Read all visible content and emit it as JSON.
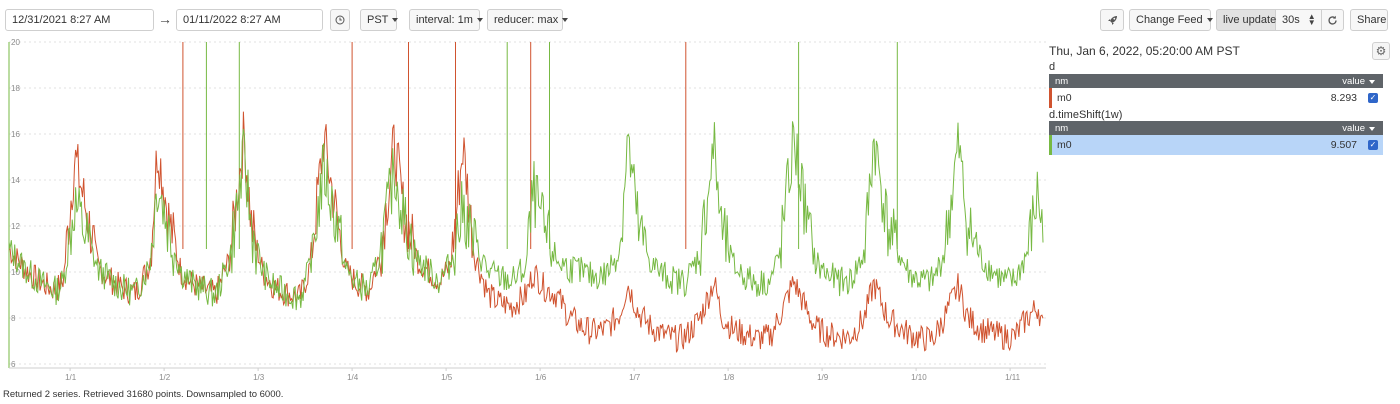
{
  "toolbar": {
    "start_time": "12/31/2021 8:27 AM",
    "end_time": "01/11/2022 8:27 AM",
    "timezone": "PST",
    "interval": "interval: 1m",
    "reducer": "reducer: max",
    "change_feed": "Change Feed",
    "live_update": "live update",
    "refresh_rate": "30s",
    "share": "Share",
    "arrow_icon": "arrow-right-icon",
    "clock_icon": "clock-icon",
    "rocket_icon": "rocket-icon",
    "refresh_icon": "refresh-icon",
    "stepper_icon": "up-down-stepper-icon"
  },
  "legend": {
    "timestamp": "Thu, Jan 6, 2022, 05:20:00 AM PST",
    "gear_icon": "gear-icon",
    "series": [
      {
        "name": "d",
        "col_name": "nm",
        "col_value": "value",
        "row_name": "m0",
        "row_value": "8.293",
        "color": "#d0532f"
      },
      {
        "name": "d.timeShift(1w)",
        "col_name": "nm",
        "col_value": "value",
        "row_name": "m0",
        "row_value": "9.507",
        "color": "#77b943"
      }
    ]
  },
  "status": "Returned 2 series. Retrieved 31680 points. Downsampled to 6000.",
  "chart_data": {
    "type": "line",
    "ylim": [
      6,
      20
    ],
    "yticks": [
      "6",
      "8",
      "10",
      "12",
      "14",
      "16",
      "18",
      "20"
    ],
    "xticks": [
      "1/1",
      "1/2",
      "1/3",
      "1/4",
      "1/5",
      "1/6",
      "1/7",
      "1/8",
      "1/9",
      "1/10",
      "1/11"
    ],
    "series": [
      {
        "name": "d",
        "color": "#d0532f",
        "x_days": [
          0,
          0.2,
          0.35,
          0.5,
          0.58,
          0.7,
          0.83,
          0.95,
          1.1,
          1.2,
          1.35,
          1.5,
          1.58,
          1.7,
          1.83,
          1.95,
          2.1,
          2.2,
          2.35,
          2.5,
          2.58,
          2.7,
          2.83,
          2.95,
          3.1,
          3.2,
          3.35,
          3.5,
          3.58,
          3.7,
          3.83,
          3.95,
          4.1,
          4.2,
          4.35,
          4.5,
          4.58,
          4.7,
          4.83,
          4.95,
          5.1,
          5.2,
          5.35,
          5.5,
          5.58,
          5.7,
          5.83,
          5.95,
          6.1,
          6.2,
          6.35,
          6.5,
          6.58,
          6.7,
          6.83,
          6.95,
          7.1,
          7.2,
          7.35,
          7.5,
          7.58,
          7.7,
          7.83,
          7.95,
          8.1,
          8.2,
          8.35,
          8.5,
          8.58,
          8.7,
          8.83,
          8.95,
          9.1,
          9.2,
          9.35,
          9.5,
          9.58,
          9.7,
          9.83,
          9.95,
          10.1,
          10.2,
          10.35,
          10.5,
          10.58,
          10.7,
          10.83,
          10.95,
          11.0
        ],
        "values": [
          11.0,
          10.0,
          9.5,
          9.2,
          9.7,
          15.0,
          12.5,
          10.2,
          9.6,
          9.3,
          9.1,
          10.4,
          15.5,
          12.3,
          10.0,
          9.5,
          9.2,
          9.0,
          10.6,
          16.0,
          12.0,
          10.0,
          9.3,
          9.1,
          8.9,
          10.2,
          15.8,
          12.0,
          10.1,
          9.5,
          9.2,
          10.8,
          15.6,
          12.6,
          10.5,
          9.9,
          9.6,
          10.3,
          15.5,
          10.8,
          9.0,
          8.7,
          8.5,
          9.0,
          10.0,
          9.3,
          9.0,
          8.1,
          7.6,
          7.4,
          7.5,
          8.2,
          9.5,
          8.2,
          7.6,
          7.3,
          7.1,
          7.2,
          8.0,
          9.6,
          8.1,
          7.5,
          7.3,
          7.1,
          7.2,
          8.1,
          9.6,
          8.2,
          7.6,
          7.3,
          7.2,
          7.2,
          8.0,
          9.5,
          8.0,
          7.5,
          7.3,
          7.1,
          7.1,
          8.0,
          9.4,
          8.0,
          7.5,
          7.3,
          7.2,
          7.2,
          8.0,
          8.5,
          7.5
        ]
      },
      {
        "name": "d.timeShift(1w)",
        "color": "#77b943",
        "x_days": [
          0,
          0.2,
          0.35,
          0.5,
          0.58,
          0.7,
          0.83,
          0.95,
          1.1,
          1.2,
          1.35,
          1.5,
          1.58,
          1.7,
          1.83,
          1.95,
          2.1,
          2.2,
          2.35,
          2.5,
          2.58,
          2.7,
          2.83,
          2.95,
          3.1,
          3.2,
          3.35,
          3.5,
          3.58,
          3.7,
          3.83,
          3.95,
          4.1,
          4.2,
          4.35,
          4.5,
          4.58,
          4.7,
          4.83,
          4.95,
          5.1,
          5.2,
          5.35,
          5.5,
          5.58,
          5.7,
          5.83,
          5.95,
          6.1,
          6.2,
          6.35,
          6.5,
          6.58,
          6.7,
          6.83,
          6.95,
          7.1,
          7.2,
          7.35,
          7.5,
          7.58,
          7.7,
          7.83,
          7.95,
          8.1,
          8.2,
          8.35,
          8.5,
          8.58,
          8.7,
          8.83,
          8.95,
          9.1,
          9.2,
          9.35,
          9.5,
          9.58,
          9.7,
          9.83,
          9.95,
          10.1,
          10.2,
          10.35,
          10.5,
          10.58,
          10.7,
          10.83,
          10.95,
          11.0
        ],
        "values": [
          11.0,
          10.0,
          9.5,
          9.2,
          9.6,
          13.0,
          11.5,
          10.1,
          9.6,
          9.3,
          9.1,
          10.4,
          14.0,
          11.8,
          10.0,
          9.5,
          9.2,
          9.0,
          10.6,
          15.0,
          11.9,
          10.0,
          9.3,
          9.1,
          8.9,
          10.2,
          14.5,
          11.9,
          10.1,
          9.5,
          9.2,
          10.8,
          14.5,
          12.3,
          10.5,
          9.9,
          9.6,
          10.4,
          12.8,
          11.2,
          10.0,
          9.8,
          9.6,
          10.2,
          13.5,
          11.7,
          10.5,
          10.2,
          10.0,
          9.8,
          9.9,
          11.0,
          15.8,
          11.8,
          10.4,
          9.9,
          9.6,
          9.6,
          10.8,
          15.5,
          11.8,
          10.3,
          9.8,
          9.5,
          9.6,
          10.8,
          15.8,
          11.9,
          10.4,
          9.9,
          9.6,
          9.6,
          10.8,
          15.8,
          11.9,
          10.5,
          9.9,
          9.6,
          9.6,
          10.8,
          15.5,
          11.9,
          10.5,
          9.9,
          9.6,
          9.6,
          10.8,
          13.5,
          11.5
        ]
      }
    ]
  }
}
